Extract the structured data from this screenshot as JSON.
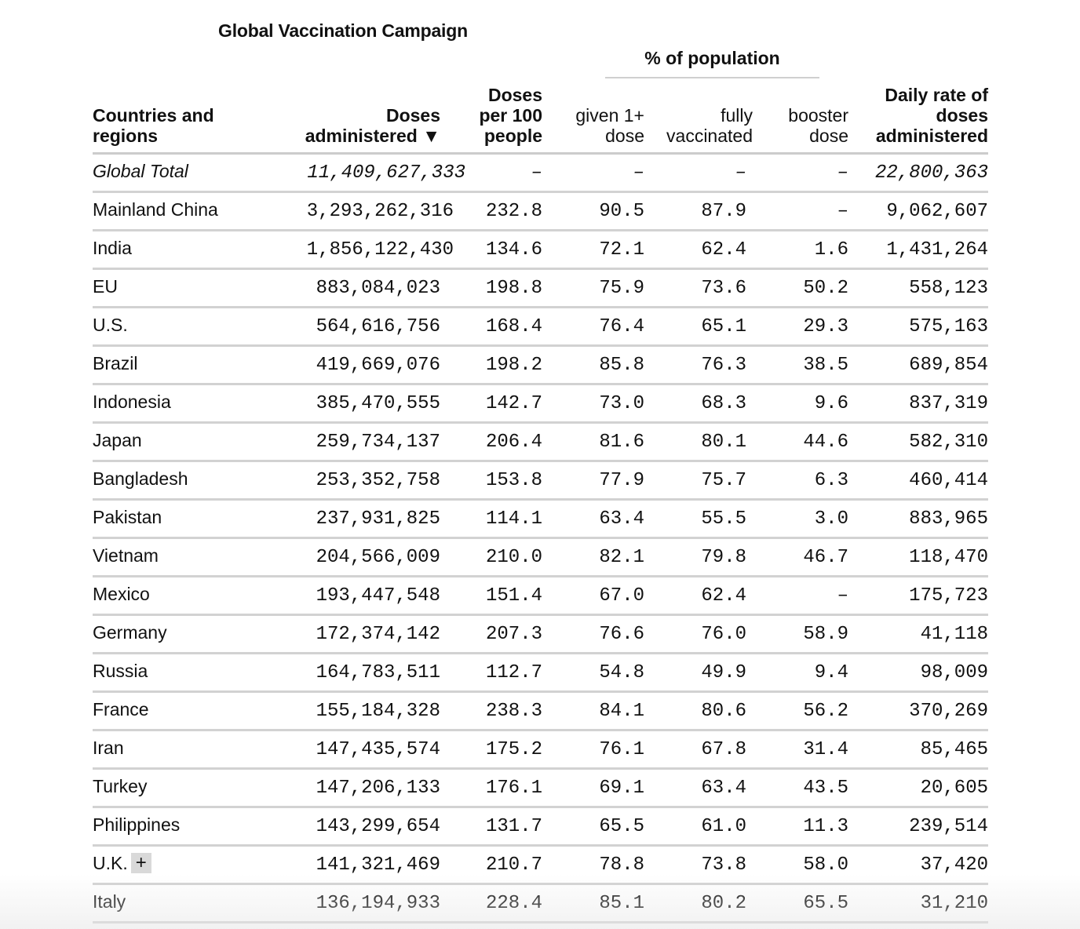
{
  "title": "Global Vaccination Campaign",
  "group_header": "% of population",
  "columns": {
    "country": [
      "Countries and",
      "regions"
    ],
    "doses": [
      "Doses",
      "administered ▼"
    ],
    "per100": [
      "Doses",
      "per 100",
      "people"
    ],
    "given": [
      "given 1+",
      "dose"
    ],
    "fully": [
      "fully",
      "vaccinated"
    ],
    "booster": [
      "booster",
      "dose"
    ],
    "daily": [
      "Daily rate of",
      "doses",
      "administered"
    ]
  },
  "expand_button_label": "+",
  "rows": [
    {
      "name": "Global Total",
      "doses": "11,409,627,333",
      "per100": "–",
      "given": "–",
      "fully": "–",
      "booster": "–",
      "daily": "22,800,363",
      "total": true
    },
    {
      "name": "Mainland China",
      "doses": "3,293,262,316",
      "per100": "232.8",
      "given": "90.5",
      "fully": "87.9",
      "booster": "–",
      "daily": "9,062,607"
    },
    {
      "name": "India",
      "doses": "1,856,122,430",
      "per100": "134.6",
      "given": "72.1",
      "fully": "62.4",
      "booster": "1.6",
      "daily": "1,431,264"
    },
    {
      "name": "EU",
      "doses": "883,084,023",
      "per100": "198.8",
      "given": "75.9",
      "fully": "73.6",
      "booster": "50.2",
      "daily": "558,123"
    },
    {
      "name": "U.S.",
      "doses": "564,616,756",
      "per100": "168.4",
      "given": "76.4",
      "fully": "65.1",
      "booster": "29.3",
      "daily": "575,163"
    },
    {
      "name": "Brazil",
      "doses": "419,669,076",
      "per100": "198.2",
      "given": "85.8",
      "fully": "76.3",
      "booster": "38.5",
      "daily": "689,854"
    },
    {
      "name": "Indonesia",
      "doses": "385,470,555",
      "per100": "142.7",
      "given": "73.0",
      "fully": "68.3",
      "booster": "9.6",
      "daily": "837,319"
    },
    {
      "name": "Japan",
      "doses": "259,734,137",
      "per100": "206.4",
      "given": "81.6",
      "fully": "80.1",
      "booster": "44.6",
      "daily": "582,310"
    },
    {
      "name": "Bangladesh",
      "doses": "253,352,758",
      "per100": "153.8",
      "given": "77.9",
      "fully": "75.7",
      "booster": "6.3",
      "daily": "460,414"
    },
    {
      "name": "Pakistan",
      "doses": "237,931,825",
      "per100": "114.1",
      "given": "63.4",
      "fully": "55.5",
      "booster": "3.0",
      "daily": "883,965"
    },
    {
      "name": "Vietnam",
      "doses": "204,566,009",
      "per100": "210.0",
      "given": "82.1",
      "fully": "79.8",
      "booster": "46.7",
      "daily": "118,470"
    },
    {
      "name": "Mexico",
      "doses": "193,447,548",
      "per100": "151.4",
      "given": "67.0",
      "fully": "62.4",
      "booster": "–",
      "daily": "175,723"
    },
    {
      "name": "Germany",
      "doses": "172,374,142",
      "per100": "207.3",
      "given": "76.6",
      "fully": "76.0",
      "booster": "58.9",
      "daily": "41,118"
    },
    {
      "name": "Russia",
      "doses": "164,783,511",
      "per100": "112.7",
      "given": "54.8",
      "fully": "49.9",
      "booster": "9.4",
      "daily": "98,009"
    },
    {
      "name": "France",
      "doses": "155,184,328",
      "per100": "238.3",
      "given": "84.1",
      "fully": "80.6",
      "booster": "56.2",
      "daily": "370,269"
    },
    {
      "name": "Iran",
      "doses": "147,435,574",
      "per100": "175.2",
      "given": "76.1",
      "fully": "67.8",
      "booster": "31.4",
      "daily": "85,465"
    },
    {
      "name": "Turkey",
      "doses": "147,206,133",
      "per100": "176.1",
      "given": "69.1",
      "fully": "63.4",
      "booster": "43.5",
      "daily": "20,605"
    },
    {
      "name": "Philippines",
      "doses": "143,299,654",
      "per100": "131.7",
      "given": "65.5",
      "fully": "61.0",
      "booster": "11.3",
      "daily": "239,514"
    },
    {
      "name": "U.K.",
      "doses": "141,321,469",
      "per100": "210.7",
      "given": "78.8",
      "fully": "73.8",
      "booster": "58.0",
      "daily": "37,420",
      "expandable": true
    },
    {
      "name": "Italy",
      "doses": "136,194,933",
      "per100": "228.4",
      "given": "85.1",
      "fully": "80.2",
      "booster": "65.5",
      "daily": "31,210"
    }
  ]
}
